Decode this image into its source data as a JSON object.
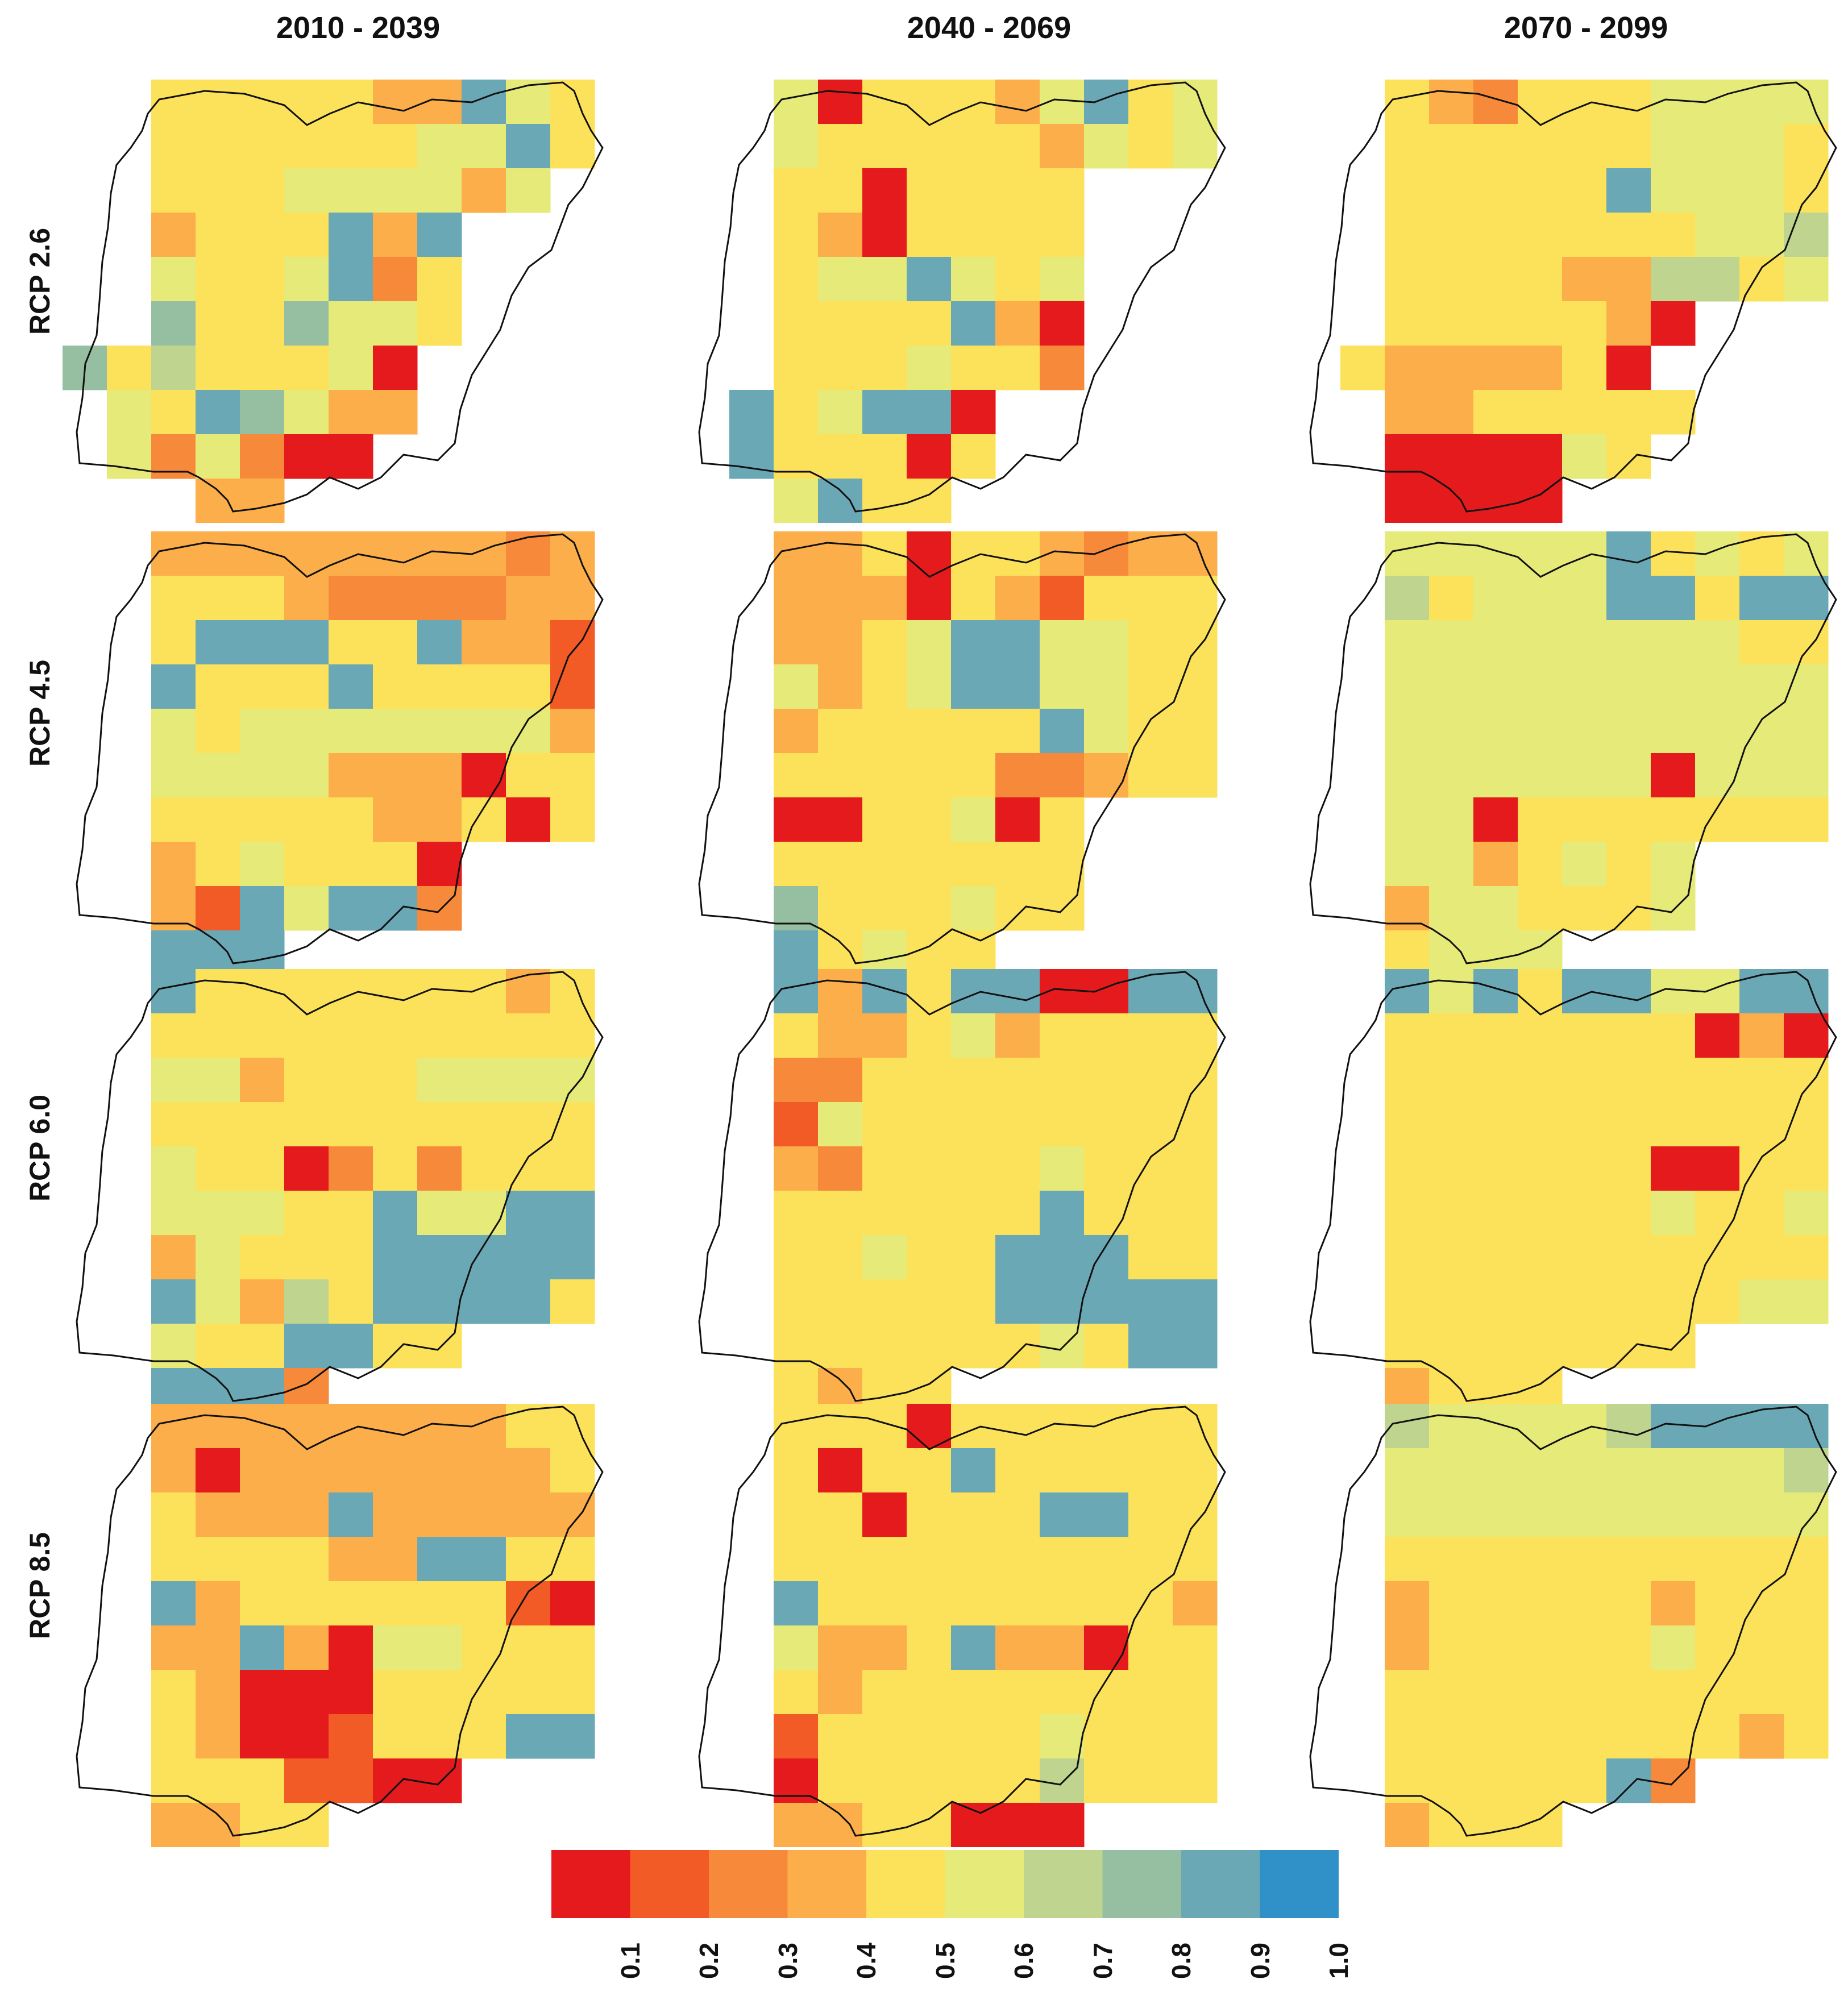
{
  "figure": {
    "columns": [
      "2010 - 2039",
      "2040 - 2069",
      "2070 - 2099"
    ],
    "rows": [
      "RCP 2.6",
      "RCP 4.5",
      "RCP 6.0",
      "RCP 8.5"
    ],
    "colorbar": {
      "ticks": [
        "0.1",
        "0.2",
        "0.3",
        "0.4",
        "0.5",
        "0.6",
        "0.7",
        "0.8",
        "0.9",
        "1.0"
      ],
      "colors": [
        "#e41a1c",
        "#f25a26",
        "#f78a3a",
        "#fbae4a",
        "#fce25a",
        "#e6ea79",
        "#bfd48f",
        "#96bfa2",
        "#6aa8b6",
        "#2f91c8"
      ]
    }
  },
  "chart_data": {
    "type": "heatmap",
    "value_scale": [
      0.0,
      1.0
    ],
    "bins": [
      0.1,
      0.2,
      0.3,
      0.4,
      0.5,
      0.6,
      0.7,
      0.8,
      0.9,
      1.0
    ],
    "grid": {
      "cols": 12,
      "rows": 10
    },
    "panels": [
      {
        "period": "2010 - 2039",
        "scenario": "RCP 2.6",
        "cells": [
          "..5555544965",
          "..5555556695",
          "..555666646.",
          "..4555949..",
          "..6556935..",
          "..8558665..",
          "85755561..",
          ".6598644..",
          ".636311..",
          "...44.."
        ]
      },
      {
        "period": "2040 - 2069",
        "scenario": "RCP 2.6",
        "cells": [
          "..6155546956",
          "..6555554656",
          "..5515555.",
          "..5415555..",
          "..5669656..",
          "..5555941..",
          "..5556553..",
          ".956991..",
          ".955515..",
          "..6955.."
        ]
      },
      {
        "period": "2070 - 2099",
        "scenario": "RCP 2.6",
        "cells": [
          "..5435556666",
          "..5555556665",
          "..5555596665",
          "..5555555667",
          "..5555447756",
          "..5555541..",
          ".5444451..",
          "..4455555..",
          "..111165..",
          "..1111.."
        ]
      },
      {
        "period": "2040 - 2069",
        "scenario": "RCP 4.5",
        "cells": [
          "..4451554344",
          "..4441542555",
          "..4456996655",
          "..6456996655",
          "..4555559655",
          "..5555533455",
          "..1155615..",
          "..5555555..",
          "..8555655..",
          "..95655.."
        ]
      },
      {
        "period": "2010 - 2039",
        "scenario": "RCP 4.5",
        "cells": [
          "..4444444434",
          "..5554333344",
          "..5999559442",
          "..9555955552",
          "..6566666664",
          "..6666444155",
          "..5555544515",
          "..4565551..",
          "..4296993..",
          "..999.."
        ]
      },
      {
        "period": "2070 - 2099",
        "scenario": "RCP 4.5",
        "cells": [
          "..6666695656",
          "..7566699599",
          "..6666666655",
          "..6666666666",
          "..6666666666",
          "..6666661666",
          "..6615555555",
          "..6645656..",
          "..4665556..",
          "..5666.."
        ]
      },
      {
        "period": "2010 - 2039",
        "scenario": "RCP 6.0",
        "cells": [
          "..9555555545",
          "..5555555555",
          "..6645556666",
          "..5555555555",
          "..6551353555",
          "..6665596699",
          "..4655599999",
          "..9647599995",
          "..6559955..",
          "..9993.."
        ]
      },
      {
        "period": "2040 - 2069",
        "scenario": "RCP 6.0",
        "cells": [
          "..9495991199",
          "..5445645555",
          "..3355555555",
          "..2655555555",
          "..4355556555",
          "..5555559555",
          "..5565599955",
          "..5555599999",
          "..5555556599",
          "..5455.."
        ]
      },
      {
        "period": "2070 - 2099",
        "scenario": "RCP 6.0",
        "cells": [
          "..9695996699",
          "..5555555141",
          "..5555555555",
          "..5555555555",
          "..5555551155",
          "..5555556556",
          "..5555555555",
          "..5555555566",
          "..5555555..",
          "..4555.."
        ]
      },
      {
        "period": "2010 - 2039",
        "scenario": "RCP 8.5",
        "cells": [
          "..4444444455",
          "..4144444445",
          "..5444944444",
          "..5555449955",
          "..9455555521",
          "..4494166555",
          "..5411155555",
          "..5411255599",
          "..5552211..",
          "..4455.."
        ]
      },
      {
        "period": "2040 - 2069",
        "scenario": "RCP 8.5",
        "cells": [
          "..5551555555",
          "..5155955555",
          "..5515559955",
          "..5555555555",
          "..9555555554",
          "..6445944155",
          "..5455555555",
          "..2555556555",
          "..1555557555",
          "..4455111.."
        ]
      },
      {
        "period": "2070 - 2099",
        "scenario": "RCP 8.5",
        "cells": [
          "..7666679999",
          "..6666666667",
          "..6666666666",
          "..5555555555",
          "..4555554555",
          "..4555556555",
          "..5555555555",
          "..5555555545",
          "..5555593..",
          "..4555.."
        ]
      }
    ]
  }
}
